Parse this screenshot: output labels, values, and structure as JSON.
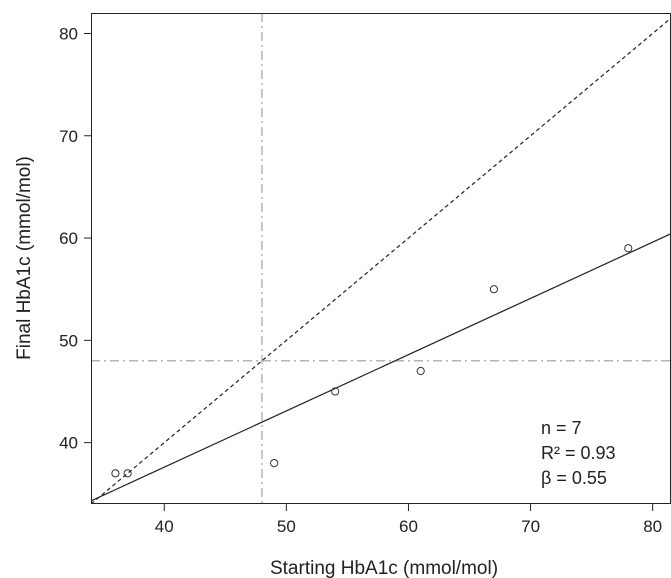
{
  "chart_data": {
    "type": "scatter",
    "title": "",
    "xlabel": "Starting HbA1c (mmol/mol)",
    "ylabel": "Final HbA1c (mmol/mol)",
    "xlim": [
      34,
      81.5
    ],
    "ylim": [
      34,
      82
    ],
    "xticks": [
      40,
      50,
      60,
      70,
      80
    ],
    "yticks": [
      40,
      50,
      60,
      70,
      80
    ],
    "grid": false,
    "points": [
      {
        "x": 36,
        "y": 37
      },
      {
        "x": 37,
        "y": 37
      },
      {
        "x": 49,
        "y": 38
      },
      {
        "x": 54,
        "y": 45
      },
      {
        "x": 61,
        "y": 47
      },
      {
        "x": 67,
        "y": 55
      },
      {
        "x": 78,
        "y": 59
      }
    ],
    "identity_line": {
      "slope": 1,
      "intercept": 0,
      "style": "dashed"
    },
    "regression_line": {
      "slope": 0.55,
      "intercept": 15.6,
      "style": "solid"
    },
    "reference_lines": {
      "x": 48,
      "y": 48,
      "style": "dash-dot",
      "color": "#b5b5b5"
    },
    "annotations": [
      "n = 7",
      "R² = 0.93",
      "β = 0.55"
    ],
    "colors": {
      "axis": "#222222",
      "points": "#333333",
      "lines": "#222222",
      "reference": "#b5b5b5"
    }
  }
}
